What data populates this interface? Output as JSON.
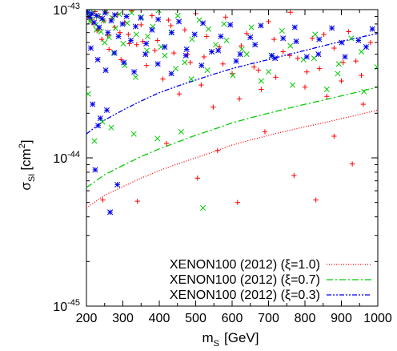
{
  "chart_data": {
    "type": "scatter",
    "title": "",
    "xlabel": "m",
    "xlabel_sub": "S",
    "xlabel_unit": "[GeV]",
    "ylabel": "σ",
    "ylabel_sub": "SI",
    "ylabel_unit_open": "[cm",
    "ylabel_unit_sup": "2",
    "ylabel_unit_close": "]",
    "xlim": [
      200,
      1000
    ],
    "ylim": [
      1e-45,
      1e-43
    ],
    "yscale": "log",
    "grid": false,
    "legend_position": "bottom-right",
    "xticks": [
      "200",
      "300",
      "400",
      "500",
      "600",
      "700",
      "800",
      "900",
      "1000"
    ],
    "yticks": [
      {
        "base": "10",
        "exp": "-45",
        "value": 1e-45
      },
      {
        "base": "10",
        "exp": "-44",
        "value": 1e-44
      },
      {
        "base": "10",
        "exp": "-43",
        "value": 1e-43
      }
    ],
    "series": [
      {
        "name": "XENON100 (2012) (ξ=1.0)",
        "kind": "line",
        "color": "#ff0000",
        "dash": "1,2",
        "x": [
          200,
          250,
          300,
          350,
          400,
          450,
          500,
          550,
          600,
          650,
          700,
          750,
          800,
          850,
          900,
          950,
          1000
        ],
        "y": [
          4.6e-45,
          5.6e-45,
          6.4e-45,
          7.3e-45,
          8.2e-45,
          9.1e-45,
          1e-44,
          1.1e-44,
          1.22e-44,
          1.32e-44,
          1.42e-44,
          1.52e-44,
          1.62e-44,
          1.72e-44,
          1.84e-44,
          1.96e-44,
          2.1e-44
        ]
      },
      {
        "name": "XENON100 (2012) (ξ=0.7)",
        "kind": "line",
        "color": "#00cc00",
        "dash": "8,3,2,3",
        "x": [
          200,
          250,
          300,
          350,
          400,
          450,
          500,
          550,
          600,
          650,
          700,
          750,
          800,
          850,
          900,
          950,
          1000
        ],
        "y": [
          6.3e-45,
          7.7e-45,
          8.9e-45,
          1.02e-44,
          1.15e-44,
          1.28e-44,
          1.42e-44,
          1.56e-44,
          1.72e-44,
          1.86e-44,
          2e-44,
          2.15e-44,
          2.3e-44,
          2.45e-44,
          2.62e-44,
          2.8e-44,
          3e-44
        ]
      },
      {
        "name": "XENON100 (2012) (ξ=0.3)",
        "kind": "line",
        "color": "#0000ee",
        "dash": "6,2,2,2,2,2",
        "x": [
          200,
          250,
          300,
          350,
          400,
          450,
          500,
          550,
          600,
          650,
          700,
          750,
          800,
          850,
          900,
          950,
          1000
        ],
        "y": [
          1.45e-44,
          1.8e-44,
          2.1e-44,
          2.42e-44,
          2.75e-44,
          3.05e-44,
          3.35e-44,
          3.67e-44,
          4e-44,
          4.3e-44,
          4.6e-44,
          4.95e-44,
          5.3e-44,
          5.7e-44,
          6.1e-44,
          6.5e-44,
          6.9e-44
        ]
      },
      {
        "kind": "points",
        "marker": "plus",
        "color": "#ff0000",
        "x": [
          203,
          208,
          212,
          218,
          224,
          229,
          236,
          242,
          248,
          255,
          262,
          270,
          278,
          286,
          295,
          305,
          315,
          325,
          338,
          350,
          365,
          380,
          395,
          410,
          425,
          440,
          455,
          470,
          485,
          500,
          515,
          530,
          548,
          565,
          582,
          600,
          620,
          640,
          660,
          680,
          700,
          720,
          740,
          760,
          780,
          800,
          820,
          840,
          860,
          880,
          900,
          920,
          940,
          960,
          980,
          215,
          232,
          258,
          292,
          318,
          355,
          388,
          432,
          478,
          523,
          575,
          625,
          672,
          715,
          758,
          805,
          852,
          905,
          955,
          245,
          340,
          420,
          505,
          560,
          615,
          690,
          770,
          830,
          880,
          930
        ],
        "y": [
          9.5e-44,
          8.8e-44,
          9.2e-44,
          8.1e-44,
          9.7e-44,
          7.2e-44,
          9e-44,
          6.3e-44,
          8.4e-44,
          9.6e-44,
          5.4e-44,
          8.7e-44,
          7.6e-44,
          9.3e-44,
          4.6e-44,
          8.2e-44,
          6.8e-44,
          9.8e-44,
          5.8e-44,
          7.9e-44,
          4.2e-44,
          9.1e-44,
          6.2e-44,
          3.4e-44,
          8.5e-44,
          5.1e-44,
          2.7e-44,
          7.3e-44,
          4.4e-44,
          9.4e-44,
          3.1e-44,
          6.6e-44,
          2.2e-44,
          5.6e-44,
          8.9e-44,
          3.7e-44,
          2.5e-44,
          6.9e-44,
          4.1e-44,
          2.9e-44,
          8.3e-44,
          3.5e-44,
          5.2e-44,
          9.6e-44,
          4.7e-44,
          3e-44,
          6.4e-44,
          4e-44,
          2.6e-44,
          5.5e-44,
          3.3e-44,
          7.1e-44,
          4.5e-44,
          2.3e-44,
          6e-44,
          8.6e-44,
          7.4e-44,
          6.7e-44,
          7e-44,
          5.9e-44,
          6.1e-44,
          5.3e-44,
          7.8e-44,
          5e-44,
          4.8e-44,
          4.3e-44,
          5.7e-44,
          3.9e-44,
          6.3e-44,
          4.9e-44,
          3.8e-44,
          6.8e-44,
          4.4e-44,
          3.6e-44,
          5.2e-45,
          5.1e-45,
          1.25e-44,
          7.3e-45,
          1.12e-44,
          5e-45,
          1.5e-44,
          7.6e-45,
          5.2e-45,
          1.4e-44,
          9.1e-45
        ]
      },
      {
        "kind": "points",
        "marker": "cross",
        "color": "#00cc00",
        "x": [
          202,
          207,
          213,
          219,
          226,
          233,
          240,
          247,
          254,
          262,
          271,
          280,
          290,
          301,
          312,
          324,
          337,
          351,
          366,
          382,
          398,
          415,
          433,
          451,
          470,
          490,
          510,
          532,
          555,
          578,
          602,
          627,
          653,
          680,
          708,
          737,
          766,
          796,
          828,
          860,
          893,
          927,
          962,
          998,
          210,
          228,
          250,
          275,
          305,
          335,
          368,
          405,
          445,
          488,
          535,
          585,
          640,
          700,
          760,
          825,
          890,
          955,
          205,
          222,
          244,
          268,
          330,
          395,
          460,
          520
        ],
        "y": [
          9.8e-44,
          9.2e-44,
          8.6e-44,
          9.6e-44,
          7.9e-44,
          9e-44,
          7.1e-44,
          8.4e-44,
          9.7e-44,
          6.5e-44,
          8.8e-44,
          7.5e-44,
          9.3e-44,
          5.9e-44,
          8.1e-44,
          9.5e-44,
          6.8e-44,
          8.9e-44,
          5.3e-44,
          7.7e-44,
          9.9e-44,
          4.9e-44,
          7e-44,
          9.1e-44,
          4.4e-44,
          6.3e-44,
          8.5e-44,
          3.9e-44,
          5.8e-44,
          8e-44,
          3.6e-44,
          5.4e-44,
          7.6e-44,
          3.3e-44,
          4.9e-44,
          7.2e-44,
          3.1e-44,
          4.6e-44,
          6.8e-44,
          2.9e-44,
          4.3e-44,
          6.4e-44,
          2.8e-44,
          4.1e-44,
          8.3e-44,
          7.3e-44,
          6e-44,
          5.1e-44,
          4.2e-44,
          3.5e-44,
          6.6e-44,
          5.6e-44,
          4e-44,
          3.4e-44,
          7.4e-44,
          6.2e-44,
          5e-44,
          3.8e-44,
          5.7e-44,
          4.7e-44,
          3.7e-44,
          5.2e-44,
          2.7e-44,
          1.3e-44,
          1.75e-44,
          1.6e-44,
          1.45e-44,
          1.35e-44,
          1.5e-44,
          4.6e-45
        ]
      },
      {
        "kind": "points",
        "marker": "star",
        "color": "#0000ee",
        "x": [
          203,
          209,
          215,
          221,
          228,
          235,
          243,
          251,
          259,
          268,
          278,
          288,
          299,
          310,
          322,
          335,
          349,
          364,
          380,
          397,
          415,
          434,
          454,
          475,
          497,
          520,
          544,
          569,
          595,
          622,
          650,
          679,
          709,
          740,
          772,
          805,
          839,
          874,
          910,
          947,
          985,
          212,
          231,
          253,
          277,
          303,
          331,
          362,
          396,
          433,
          473,
          516,
          562,
          611,
          663,
          718,
          776,
          837,
          901,
          968,
          217,
          238,
          256,
          224,
          265,
          285,
          232
        ],
        "y": [
          9.6e-44,
          8.9e-44,
          9.4e-44,
          8.2e-44,
          9.1e-44,
          7.6e-44,
          8.7e-44,
          9.5e-44,
          7e-44,
          8.4e-44,
          9.2e-44,
          6.6e-44,
          8e-44,
          9e-44,
          6.2e-44,
          7.7e-44,
          8.8e-44,
          5.9e-44,
          7.3e-44,
          8.6e-44,
          5.6e-44,
          7e-44,
          8.3e-44,
          5.4e-44,
          6.8e-44,
          8.1e-44,
          5.2e-44,
          6.6e-44,
          7.9e-44,
          5e-44,
          6.5e-44,
          7.8e-44,
          4.9e-44,
          6.4e-44,
          7.6e-44,
          4.8e-44,
          6.3e-44,
          7.5e-44,
          4.8e-44,
          6.2e-44,
          7.4e-44,
          5.5e-44,
          4.6e-44,
          3.9e-44,
          5.1e-44,
          4.4e-44,
          3.8e-44,
          5e-44,
          4.3e-44,
          3.7e-44,
          4.9e-44,
          4.2e-44,
          5.3e-44,
          4.5e-44,
          5.8e-44,
          4.7e-44,
          6.1e-44,
          5e-44,
          6e-44,
          5.6e-44,
          2.3e-44,
          1.85e-44,
          2.1e-44,
          8.3e-45,
          4.3e-45,
          6.6e-45,
          1.65e-44
        ]
      }
    ]
  }
}
